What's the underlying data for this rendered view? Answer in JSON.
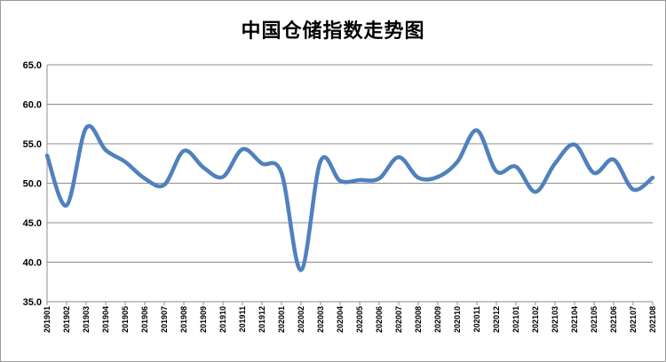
{
  "chart_data": {
    "type": "line",
    "title": "中国仓储指数走势图",
    "xlabel": "",
    "ylabel": "",
    "ylim": [
      35.0,
      65.0
    ],
    "yticks": [
      "35.0",
      "40.0",
      "45.0",
      "50.0",
      "55.0",
      "60.0",
      "65.0"
    ],
    "grid": true,
    "legend": "none",
    "line_color": "#4f81bd",
    "categories": [
      "201901",
      "201902",
      "201903",
      "201904",
      "201905",
      "201906",
      "201907",
      "201908",
      "201909",
      "201910",
      "201911",
      "201912",
      "202001",
      "202002",
      "202003",
      "202004",
      "202005",
      "202006",
      "202007",
      "202008",
      "202009",
      "202010",
      "202011",
      "202012",
      "202101",
      "202102",
      "202103",
      "202104",
      "202105",
      "202106",
      "202107",
      "202108"
    ],
    "series": [
      {
        "values": [
          53.5,
          47.2,
          57.0,
          54.2,
          52.7,
          50.6,
          49.8,
          54.1,
          52.0,
          50.8,
          54.3,
          52.5,
          51.3,
          39.0,
          52.8,
          50.3,
          50.4,
          50.6,
          53.3,
          50.7,
          50.8,
          52.7,
          56.7,
          51.5,
          52.1,
          48.9,
          52.5,
          54.9,
          51.3,
          53.0,
          49.2,
          50.7
        ]
      }
    ]
  }
}
